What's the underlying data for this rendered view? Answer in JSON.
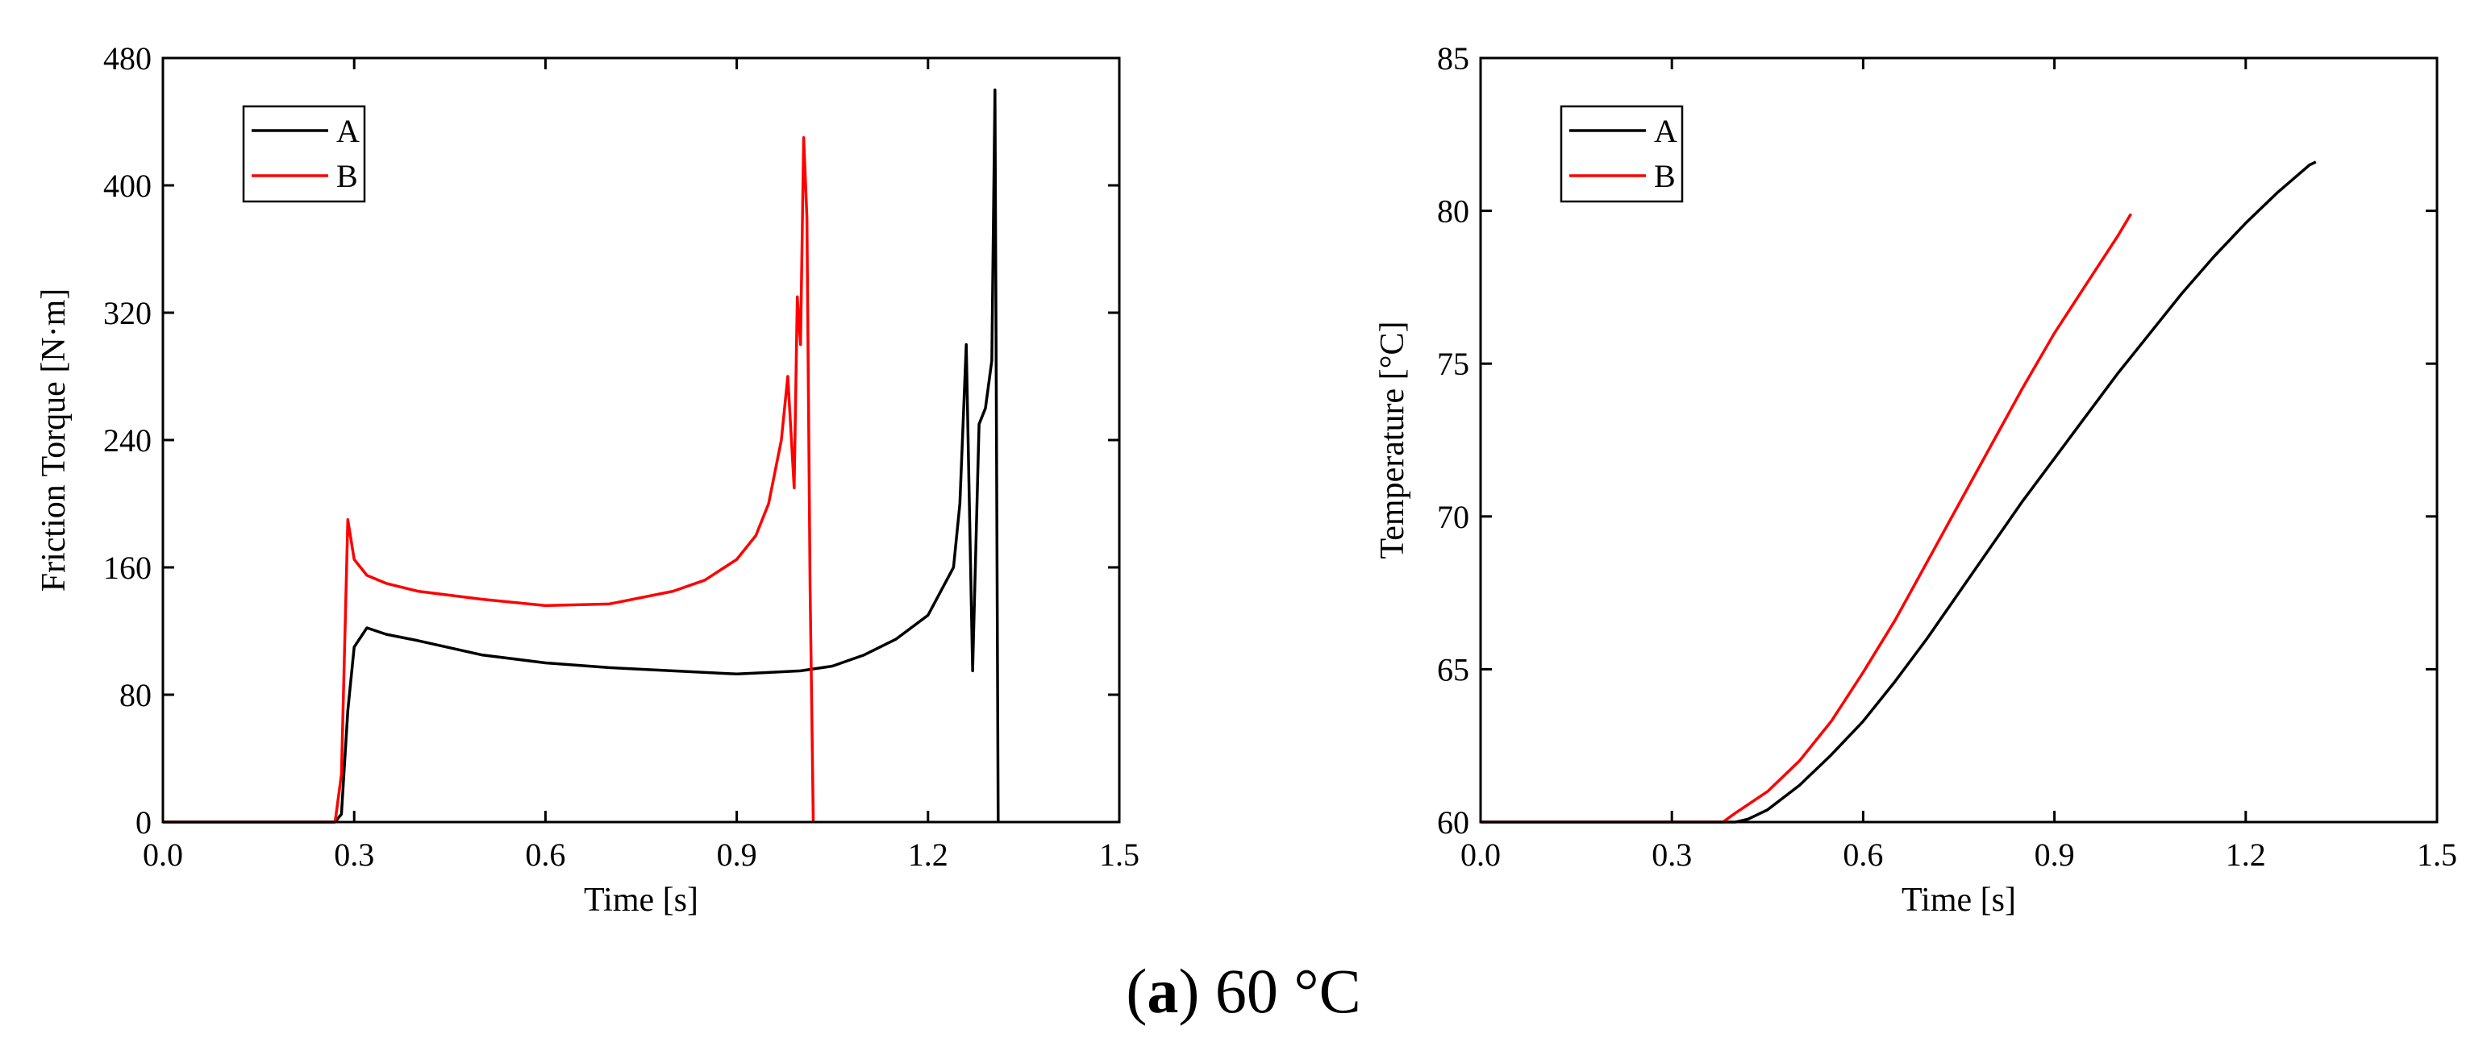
{
  "caption": {
    "letter": "a",
    "paren_open": "(",
    "paren_close": ")",
    "text": "60 °C"
  },
  "colors": {
    "A": "#000000",
    "B": "#ff0000"
  },
  "chart_data": [
    {
      "type": "line",
      "title": "",
      "xlabel": "Time [s]",
      "ylabel": "Friction Torque [N·m]",
      "xlim": [
        0,
        1.5
      ],
      "ylim": [
        0,
        480
      ],
      "xticks": [
        0.0,
        0.3,
        0.6,
        0.9,
        1.2,
        1.5
      ],
      "xtick_labels": [
        "0.0",
        "0.3",
        "0.6",
        "0.9",
        "1.2",
        "1.5"
      ],
      "yticks": [
        0,
        80,
        160,
        240,
        320,
        400,
        480
      ],
      "ytick_labels": [
        "0",
        "80",
        "160",
        "240",
        "320",
        "400",
        "480"
      ],
      "legend": {
        "position": "top-left",
        "entries": [
          "A",
          "B"
        ]
      },
      "series": [
        {
          "name": "A",
          "x": [
            0,
            0.1,
            0.2,
            0.27,
            0.28,
            0.29,
            0.3,
            0.32,
            0.35,
            0.4,
            0.5,
            0.6,
            0.7,
            0.8,
            0.9,
            0.95,
            1.0,
            1.05,
            1.1,
            1.15,
            1.2,
            1.24,
            1.25,
            1.26,
            1.27,
            1.28,
            1.29,
            1.3,
            1.305,
            1.31
          ],
          "y": [
            0,
            0,
            0,
            0,
            5,
            70,
            110,
            122,
            118,
            114,
            105,
            100,
            97,
            95,
            93,
            94,
            95,
            98,
            105,
            115,
            130,
            160,
            200,
            300,
            95,
            250,
            260,
            290,
            460,
            0
          ]
        },
        {
          "name": "B",
          "x": [
            0,
            0.1,
            0.2,
            0.27,
            0.28,
            0.29,
            0.3,
            0.32,
            0.35,
            0.4,
            0.5,
            0.6,
            0.7,
            0.8,
            0.85,
            0.9,
            0.93,
            0.95,
            0.97,
            0.98,
            0.99,
            0.995,
            1.0,
            1.005,
            1.01,
            1.015,
            1.02
          ],
          "y": [
            0,
            0,
            0,
            0,
            30,
            190,
            165,
            155,
            150,
            145,
            140,
            136,
            137,
            145,
            152,
            165,
            180,
            200,
            240,
            280,
            210,
            330,
            300,
            430,
            380,
            150,
            0
          ]
        }
      ]
    },
    {
      "type": "line",
      "title": "",
      "xlabel": "Time [s]",
      "ylabel": "Temperature [°C]",
      "xlim": [
        0,
        1.5
      ],
      "ylim": [
        60,
        85
      ],
      "xticks": [
        0.0,
        0.3,
        0.6,
        0.9,
        1.2,
        1.5
      ],
      "xtick_labels": [
        "0.0",
        "0.3",
        "0.6",
        "0.9",
        "1.2",
        "1.5"
      ],
      "yticks": [
        60,
        65,
        70,
        75,
        80,
        85
      ],
      "ytick_labels": [
        "60",
        "65",
        "70",
        "75",
        "80",
        "85"
      ],
      "legend": {
        "position": "top-left",
        "entries": [
          "A",
          "B"
        ]
      },
      "series": [
        {
          "name": "A",
          "x": [
            0,
            0.2,
            0.4,
            0.42,
            0.45,
            0.5,
            0.55,
            0.6,
            0.65,
            0.7,
            0.75,
            0.8,
            0.85,
            0.9,
            0.95,
            1.0,
            1.05,
            1.1,
            1.15,
            1.2,
            1.25,
            1.3,
            1.31
          ],
          "y": [
            60,
            60,
            60,
            60.1,
            60.4,
            61.2,
            62.2,
            63.3,
            64.6,
            66.0,
            67.5,
            69.0,
            70.5,
            71.9,
            73.3,
            74.7,
            76.0,
            77.3,
            78.5,
            79.6,
            80.6,
            81.5,
            81.6
          ]
        },
        {
          "name": "B",
          "x": [
            0,
            0.1,
            0.2,
            0.3,
            0.38,
            0.4,
            0.45,
            0.5,
            0.55,
            0.6,
            0.65,
            0.7,
            0.75,
            0.8,
            0.85,
            0.9,
            0.95,
            1.0,
            1.02
          ],
          "y": [
            60,
            60,
            60,
            60,
            60,
            60.3,
            61.0,
            62.0,
            63.3,
            64.9,
            66.6,
            68.5,
            70.4,
            72.3,
            74.2,
            76.0,
            77.6,
            79.2,
            79.9
          ]
        }
      ]
    }
  ]
}
